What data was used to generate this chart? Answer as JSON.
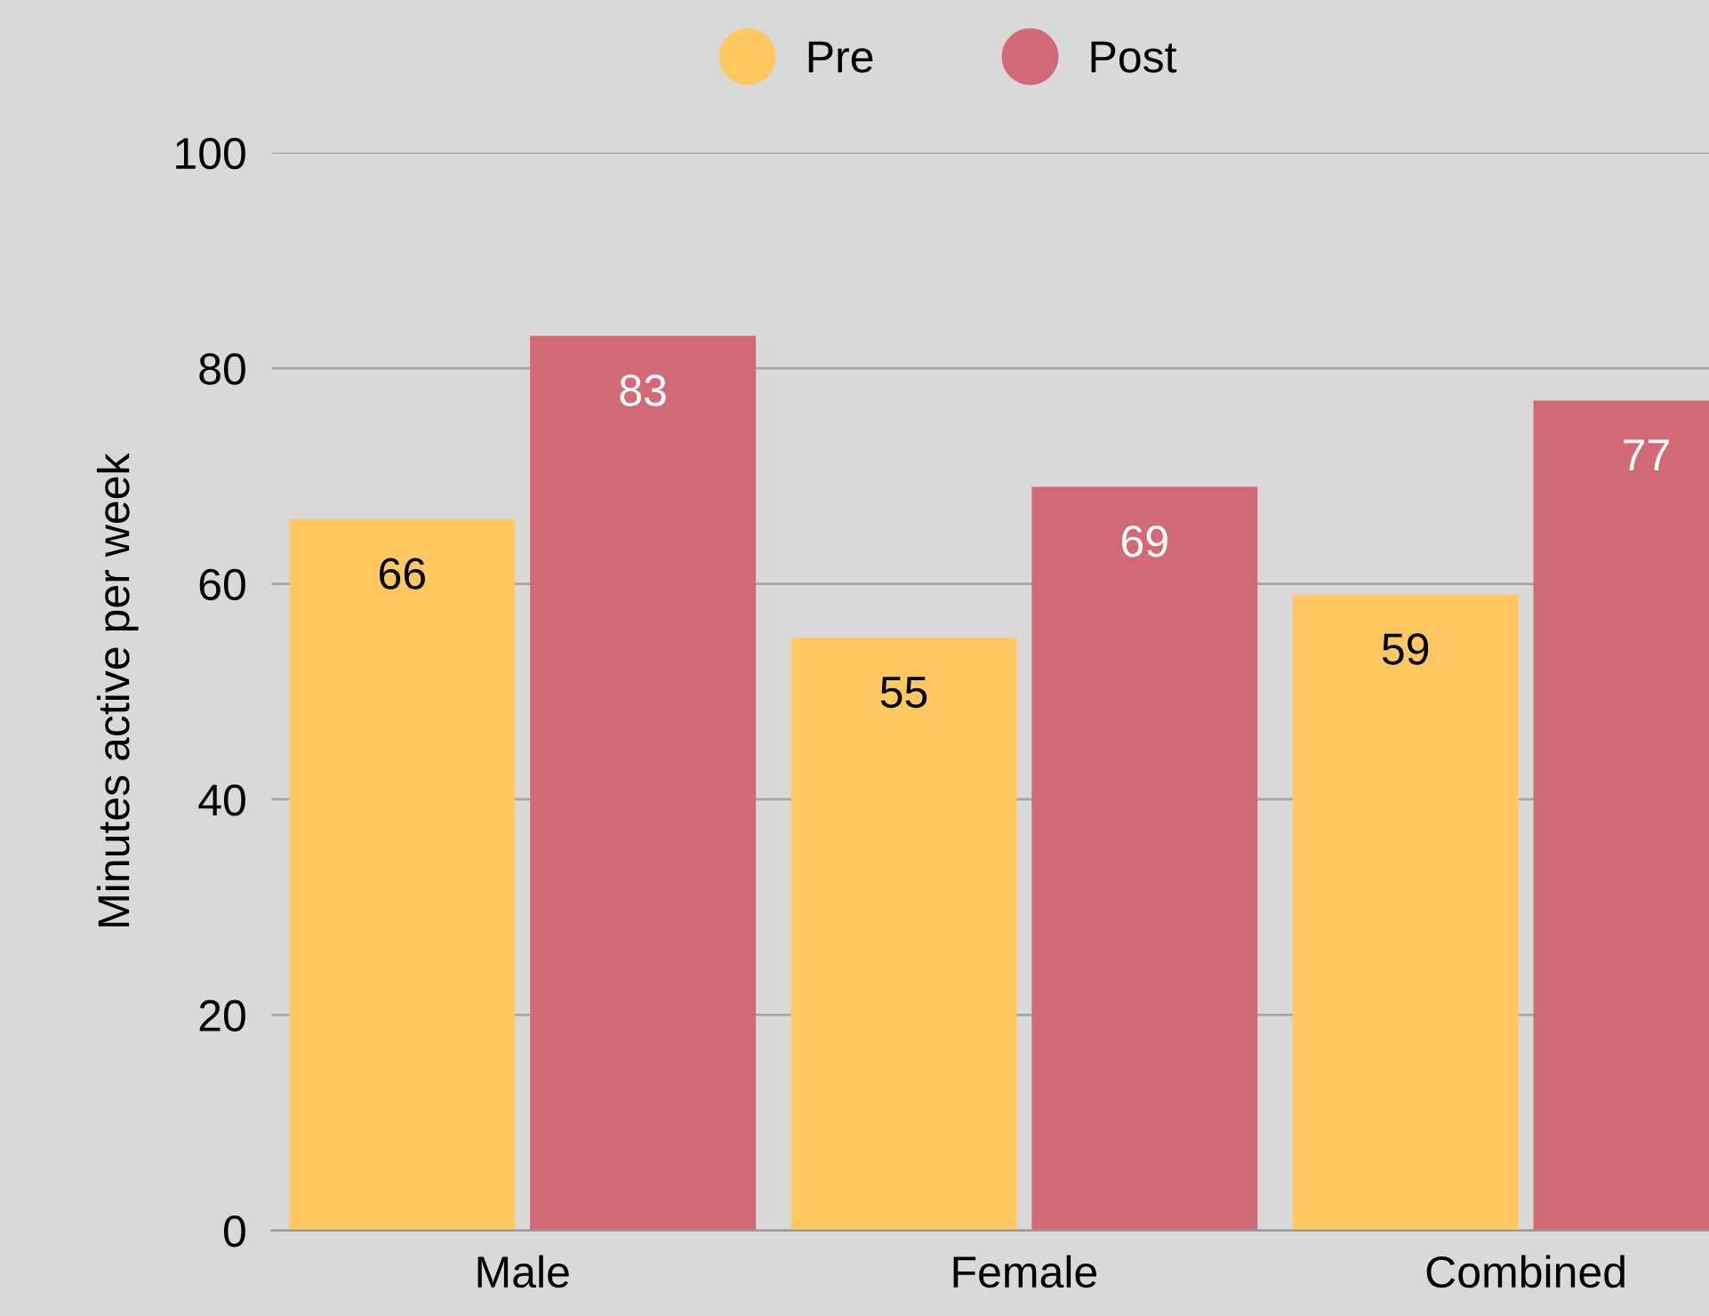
{
  "chart_data": {
    "type": "bar",
    "ylabel": "Minutes active per week",
    "categories": [
      "Male",
      "Female",
      "Combined"
    ],
    "series": [
      {
        "name": "Pre",
        "color": "#ffc861",
        "values": [
          66,
          55,
          59
        ]
      },
      {
        "name": "Post",
        "color": "#d26a76",
        "values": [
          83,
          69,
          77
        ]
      }
    ],
    "ylim": [
      0,
      100
    ],
    "yticks": [
      0,
      20,
      40,
      60,
      80,
      100
    ],
    "grid": "y",
    "legend": "top",
    "data_labels": true
  }
}
